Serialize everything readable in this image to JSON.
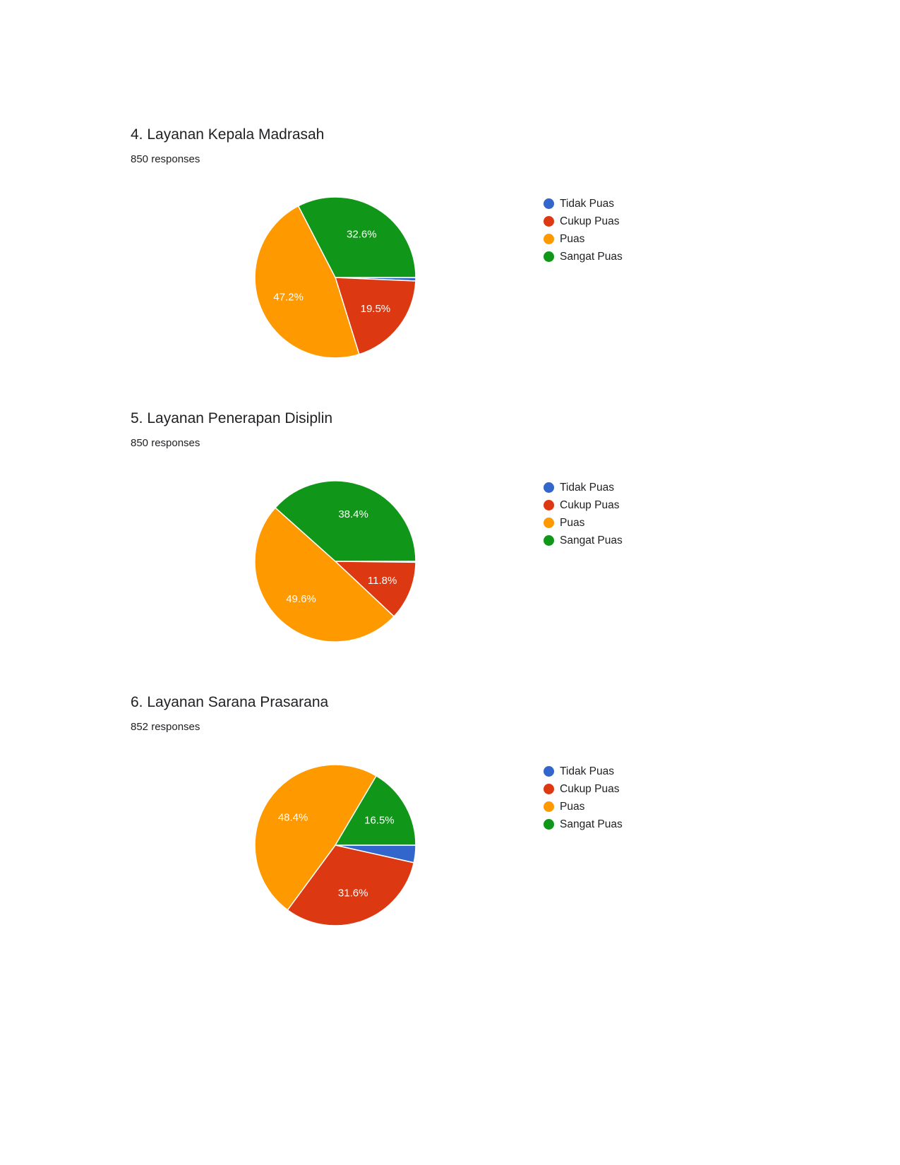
{
  "chart_data": [
    {
      "type": "pie",
      "title": "4. Layanan Kepala Madrasah",
      "subtitle": "850 responses",
      "legend_position": "right",
      "categories": [
        "Tidak Puas",
        "Cukup Puas",
        "Puas",
        "Sangat Puas"
      ],
      "colors": [
        "#3366cc",
        "#dc3912",
        "#ff9900",
        "#109618"
      ],
      "values": [
        0.7,
        19.5,
        47.2,
        32.6
      ],
      "labels": [
        "",
        "19.5%",
        "47.2%",
        "32.6%"
      ]
    },
    {
      "type": "pie",
      "title": "5. Layanan Penerapan Disiplin",
      "subtitle": "850 responses",
      "legend_position": "right",
      "categories": [
        "Tidak Puas",
        "Cukup Puas",
        "Puas",
        "Sangat Puas"
      ],
      "colors": [
        "#3366cc",
        "#dc3912",
        "#ff9900",
        "#109618"
      ],
      "values": [
        0.2,
        11.8,
        49.6,
        38.4
      ],
      "labels": [
        "",
        "11.8%",
        "49.6%",
        "38.4%"
      ]
    },
    {
      "type": "pie",
      "title": "6. Layanan Sarana Prasarana",
      "subtitle": "852 responses",
      "legend_position": "right",
      "categories": [
        "Tidak Puas",
        "Cukup Puas",
        "Puas",
        "Sangat Puas"
      ],
      "colors": [
        "#3366cc",
        "#dc3912",
        "#ff9900",
        "#109618"
      ],
      "values": [
        3.5,
        31.6,
        48.4,
        16.5
      ],
      "labels": [
        "",
        "31.6%",
        "48.4%",
        "16.5%"
      ]
    }
  ]
}
